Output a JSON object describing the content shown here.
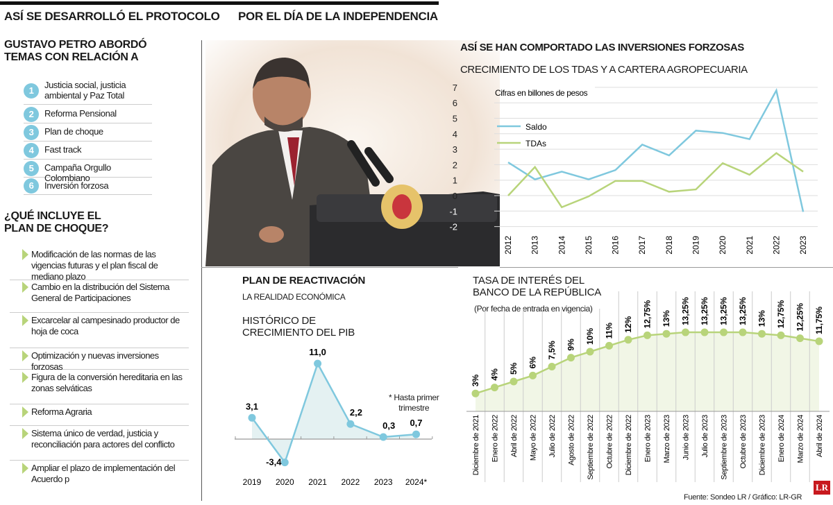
{
  "header": {
    "left_title": "ASÍ SE DESARROLLÓ EL PROTOCOLO",
    "right_title": "POR EL DÍA DE LA INDEPENDENCIA"
  },
  "topics": {
    "title_line1": "GUSTAVO PETRO ABORDÓ",
    "title_line2": "TEMAS CON RELACIÓN A",
    "items": [
      {
        "num": "1",
        "line1": "Justicia social, justicia",
        "line2": "ambiental y Paz Total"
      },
      {
        "num": "2",
        "line1": "Reforma Pensional",
        "line2": ""
      },
      {
        "num": "3",
        "line1": "Plan de choque",
        "line2": ""
      },
      {
        "num": "4",
        "line1": "Fast track",
        "line2": ""
      },
      {
        "num": "5",
        "line1": "Campaña Orgullo Colombiano",
        "line2": ""
      },
      {
        "num": "6",
        "line1": "Inversión forzosa",
        "line2": ""
      }
    ]
  },
  "plan": {
    "title_line1": "¿QUÉ INCLUYE EL",
    "title_line2": "PLAN DE CHOQUE?",
    "items": [
      "Modificación de las normas de las vigencias futuras y el plan fiscal de mediano plazo",
      "Cambio en la distribución del Sistema General de Participaciones",
      "Excarcelar al campesinado productor de hoja de coca",
      "Optimización y nuevas inversiones forzosas",
      "Figura de la conversión hereditaria en las zonas selváticas",
      "Reforma Agraria",
      "Sistema único de verdad, justicia y reconciliación para actores del conflicto",
      "Ampliar el plazo de implementación del Acuerdo p"
    ]
  },
  "colors": {
    "blue": "#7fc8de",
    "green": "#b8d47a",
    "green_fill": "#f1f6e6",
    "blue_fill": "#e4f1f2",
    "logo_red": "#c8191e"
  },
  "footer": {
    "source": "Fuente: Sondeo LR / Gráfico: LR-GR",
    "logo": "LR"
  },
  "chart_data": [
    {
      "type": "line",
      "title": "ASÍ SE HAN COMPORTADO LAS INVERSIONES FORZOSAS",
      "subtitle": "CRECIMIENTO DE LOS TDAS Y A CARTERA AGROPECUARIA",
      "note": "Cifras en billones de pesos",
      "categories": [
        "2012",
        "2013",
        "2014",
        "2015",
        "2016",
        "2017",
        "2018",
        "2019",
        "2020",
        "2021",
        "2022",
        "2023"
      ],
      "yticks": [
        "7",
        "6",
        "5",
        "4",
        "3",
        "2",
        "1",
        "0",
        "-1",
        "-2"
      ],
      "ylim": [
        -2,
        7
      ],
      "grid": true,
      "legend": "top-left",
      "series": [
        {
          "name": "Saldo",
          "color": "#7fc8de",
          "values": [
            2.15,
            1.05,
            1.55,
            1.05,
            1.65,
            3.3,
            2.6,
            4.2,
            4.05,
            3.65,
            6.8,
            -1.05
          ]
        },
        {
          "name": "TDAs",
          "color": "#b8d47a",
          "values": [
            0,
            1.85,
            -0.75,
            -0.05,
            0.95,
            0.95,
            0.25,
            0.4,
            2.1,
            1.35,
            2.75,
            1.55
          ]
        }
      ]
    },
    {
      "type": "area",
      "section_title": "PLAN DE REACTIVACIÓN",
      "section_subtitle": "LA REALIDAD ECONÓMICA",
      "title_line1": "HISTÓRICO DE",
      "title_line2": "CRECIMIENTO DEL PIB",
      "note_line1": "* Hasta primer",
      "note_line2": "trimestre",
      "categories": [
        "2019",
        "2020",
        "2021",
        "2022",
        "2023",
        "2024*"
      ],
      "values": [
        3.1,
        -3.4,
        11.0,
        2.2,
        0.3,
        0.7
      ],
      "labels": [
        "3,1",
        "-3,4",
        "11,0",
        "2,2",
        "0,3",
        "0,7"
      ]
    },
    {
      "type": "area",
      "title_line1": "TASA DE INTERÉS DEL",
      "title_line2": "BANCO DE LA REPÚBLICA",
      "subtitle": "(Por fecha de entrada en vigencia)",
      "categories": [
        "Diciembre de 2021",
        "Enero de 2022",
        "Abril de 2022",
        "Mayo de 2022",
        "Julio de 2022",
        "Agosto de 2022",
        "Septiembre de 2022",
        "Octubre de 2022",
        "Diciembre de 2022",
        "Enero de 2023",
        "Marzo de 2023",
        "Junio de 2023",
        "Julio de 2023",
        "Septiembre de 2023",
        "Octubre de 2023",
        "Diciembre de 2023",
        "Enero de 2024",
        "Marzo de 2024",
        "Abril de 2024"
      ],
      "values": [
        3,
        4,
        5,
        6,
        7.5,
        9,
        10,
        11,
        12,
        12.75,
        13,
        13.25,
        13.25,
        13.25,
        13.25,
        13,
        12.75,
        12.25,
        11.75
      ],
      "labels": [
        "3%",
        "4%",
        "5%",
        "6%",
        "7,5%",
        "9%",
        "10%",
        "11%",
        "12%",
        "12,75%",
        "13%",
        "13,25%",
        "13,25%",
        "13,25%",
        "13,25%",
        "13%",
        "12,75%",
        "12,25%",
        "11,75%"
      ]
    }
  ]
}
